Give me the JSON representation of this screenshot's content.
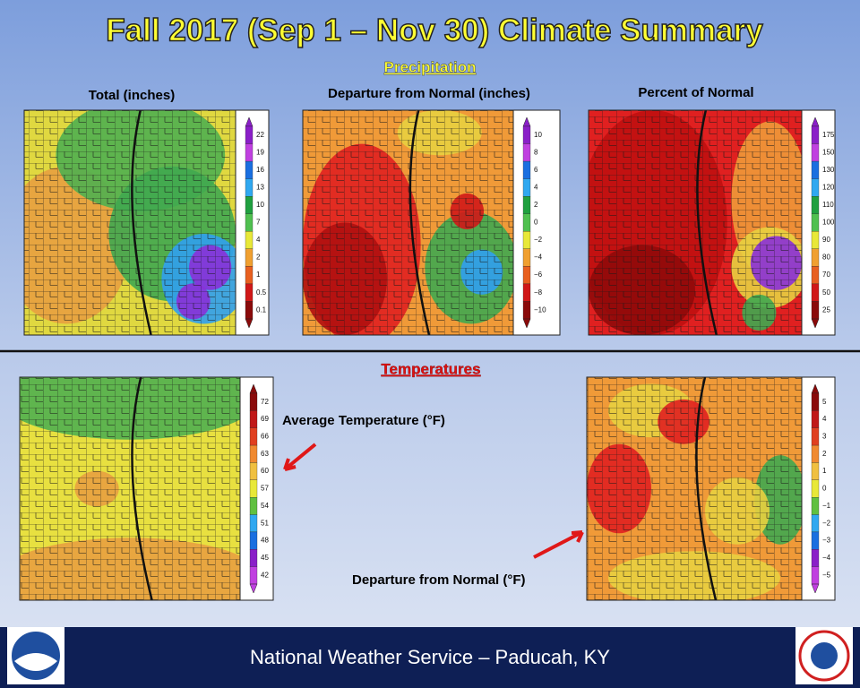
{
  "title": "Fall 2017 (Sep 1 – Nov 30) Climate Summary",
  "precipitation": {
    "heading": "Precipitation",
    "panels": [
      {
        "label": "Total (inches)",
        "legend": [
          "22",
          "19",
          "16",
          "13",
          "10",
          "7",
          "4",
          "2",
          "1",
          "0.5",
          "0.1"
        ]
      },
      {
        "label": "Departure from Normal (inches)",
        "legend": [
          "10",
          "8",
          "6",
          "4",
          "2",
          "0",
          "−2",
          "−4",
          "−6",
          "−8",
          "−10"
        ]
      },
      {
        "label": "Percent of Normal",
        "legend": [
          "175",
          "150",
          "130",
          "120",
          "110",
          "100",
          "90",
          "80",
          "70",
          "50",
          "25"
        ]
      }
    ]
  },
  "temperatures": {
    "heading": "Temperatures",
    "panels": [
      {
        "label": "Average Temperature (°F)",
        "legend": [
          "72",
          "69",
          "66",
          "63",
          "60",
          "57",
          "54",
          "51",
          "48",
          "45",
          "42"
        ]
      },
      {
        "label": "Departure from Normal (°F)",
        "legend": [
          "5",
          "4",
          "3",
          "2",
          "1",
          "0",
          "−1",
          "−2",
          "−3",
          "−4",
          "−5"
        ]
      }
    ]
  },
  "footer": "National Weather Service – Paducah, KY"
}
